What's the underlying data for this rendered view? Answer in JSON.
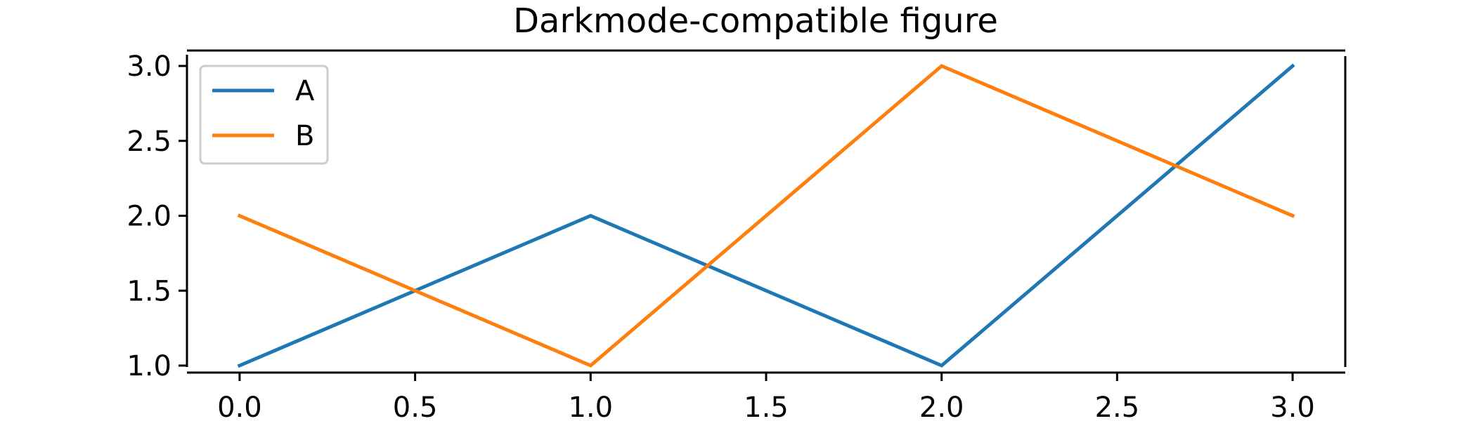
{
  "chart_data": {
    "type": "line",
    "title": "Darkmode-compatible figure",
    "xlabel": "",
    "ylabel": "",
    "x": [
      0,
      1,
      2,
      3
    ],
    "series": [
      {
        "name": "A",
        "values": [
          1,
          2,
          1,
          3
        ],
        "color": "#1f77b4"
      },
      {
        "name": "B",
        "values": [
          2,
          1,
          3,
          2
        ],
        "color": "#ff7f0e"
      }
    ],
    "xlim": [
      -0.15,
      3.15
    ],
    "ylim": [
      0.9,
      3.1
    ],
    "xticks": [
      0.0,
      0.5,
      1.0,
      1.5,
      2.0,
      2.5,
      3.0
    ],
    "xtick_labels": [
      "0.0",
      "0.5",
      "1.0",
      "1.5",
      "2.0",
      "2.5",
      "3.0"
    ],
    "yticks": [
      1.0,
      1.5,
      2.0,
      2.5,
      3.0
    ],
    "ytick_labels": [
      "1.0",
      "1.5",
      "2.0",
      "2.5",
      "3.0"
    ],
    "grid": false,
    "legend": "upper-left",
    "spines": "offset"
  }
}
